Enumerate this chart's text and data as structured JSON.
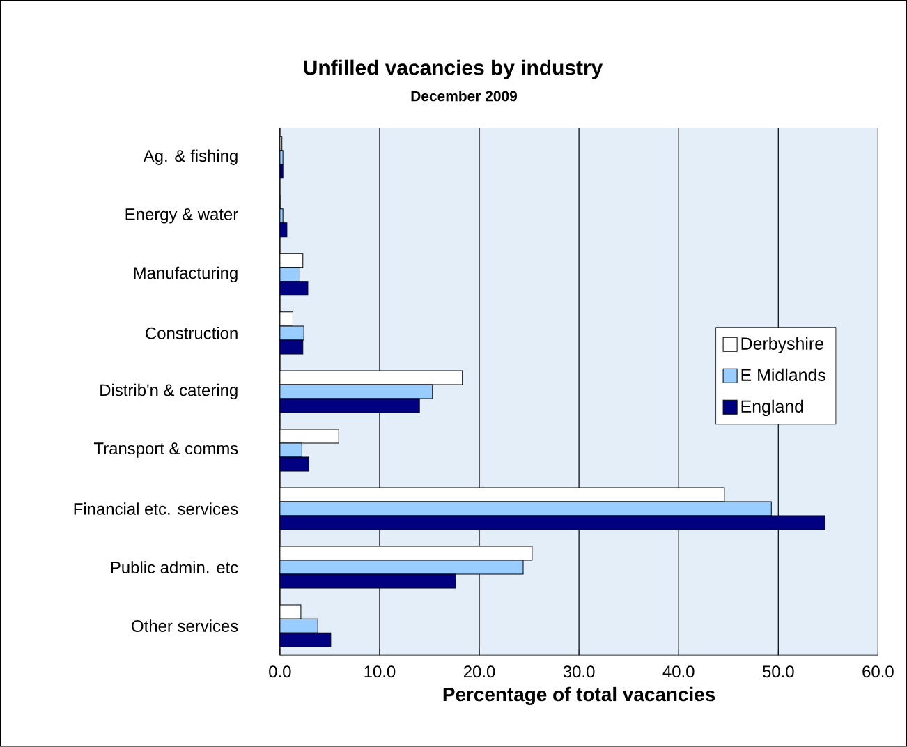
{
  "chart_data": {
    "type": "bar",
    "orientation": "horizontal",
    "title": "Unfilled vacancies by industry",
    "subtitle": "December 2009",
    "xlabel": "Percentage of total vacancies",
    "categories": [
      "Ag. & fishing",
      "Energy & water",
      "Manufacturing",
      "Construction",
      "Distrib'n & catering",
      "Transport & comms",
      "Financial etc. services",
      "Public admin. etc",
      "Other services"
    ],
    "series": [
      {
        "name": "Derbyshire",
        "color": "#ffffff",
        "values": [
          0.2,
          0,
          2.3,
          1.3,
          18.3,
          5.9,
          44.6,
          25.3,
          2.1
        ]
      },
      {
        "name": "E Midlands",
        "color": "#99ccff",
        "values": [
          0.3,
          0.3,
          2.0,
          2.4,
          15.3,
          2.2,
          49.3,
          24.4,
          3.8
        ]
      },
      {
        "name": "England",
        "color": "#000080",
        "values": [
          0.3,
          0.7,
          2.8,
          2.3,
          14.0,
          2.9,
          54.7,
          17.6,
          5.1
        ]
      }
    ],
    "xlim": [
      0,
      60
    ],
    "xticks": [
      {
        "value": 0,
        "label": "0.0"
      },
      {
        "value": 10,
        "label": "10.0"
      },
      {
        "value": 20,
        "label": "20.0"
      },
      {
        "value": 30,
        "label": "30.0"
      },
      {
        "value": 40,
        "label": "40.0"
      },
      {
        "value": 50,
        "label": "50.0"
      },
      {
        "value": 60,
        "label": "60.0"
      }
    ],
    "grid": "x",
    "legend": "right"
  }
}
